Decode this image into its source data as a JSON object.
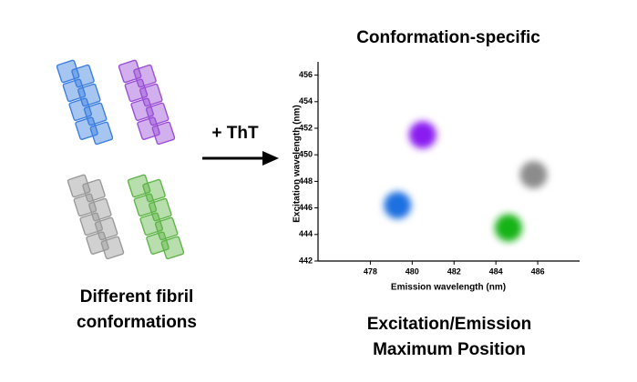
{
  "labels": {
    "left_caption_line1": "Different fibril",
    "left_caption_line2": "conformations",
    "arrow_label": "+ ThT",
    "right_caption_line1": "Excitation/Emission",
    "right_caption_line2": "Maximum Position"
  },
  "chart_data": {
    "type": "scatter",
    "title": "Conformation-specific",
    "x_label": "Emission wavelength (nm)",
    "y_label": "Excitation wavelength (nm)",
    "x": [
      480.5,
      479.3,
      484.6,
      485.8
    ],
    "values": [
      451.5,
      446.2,
      444.5,
      448.5
    ],
    "colors": [
      "#8a1df0",
      "#1f6fe0",
      "#12b312",
      "#8c8c8c"
    ],
    "xlim": [
      475.5,
      488
    ],
    "ylim": [
      442,
      457
    ],
    "xticks": [
      478,
      480,
      482,
      484,
      486
    ],
    "yticks": [
      442,
      444,
      446,
      448,
      450,
      452,
      454,
      456
    ]
  }
}
